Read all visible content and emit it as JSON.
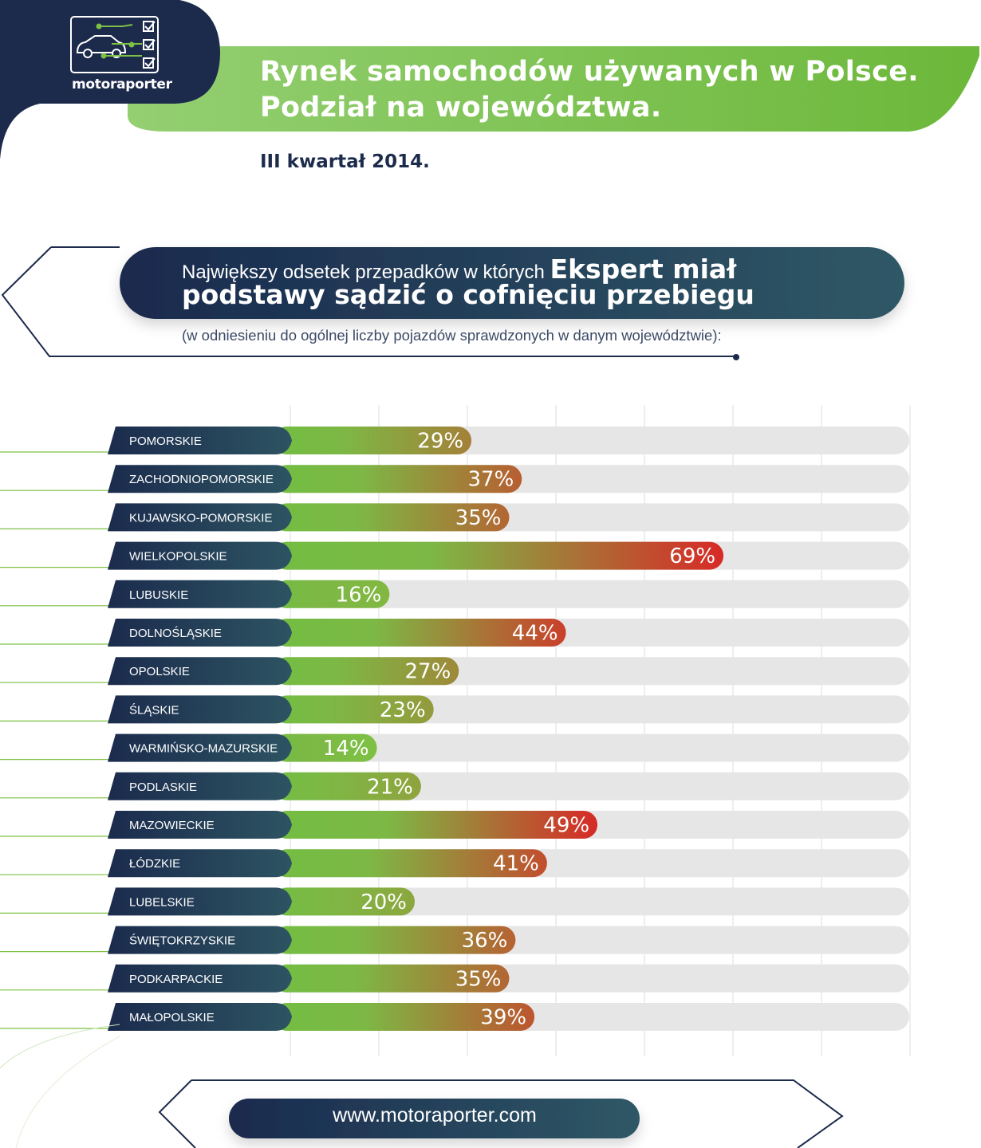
{
  "brand": {
    "name": "motoraporter",
    "logo_icon": "car-checklist-icon"
  },
  "header": {
    "title_line1": "Rynek samochodów używanych  w Polsce.",
    "title_line2": "Podział na województwa.",
    "period": "III kwartał 2014."
  },
  "question": {
    "prefix": "Największy odsetek przepadków w których ",
    "bold_tail": "Ekspert miał",
    "line2": "podstawy sądzić o cofnięciu przebiegu",
    "note": "(w odniesieniu do ogólnej liczby pojazdów sprawdzonych w danym województwie):"
  },
  "chart_data": {
    "type": "bar",
    "orientation": "horizontal",
    "title": "Największy odsetek przepadków w których Ekspert miał podstawy sądzić o cofnięciu przebiegu",
    "categories": [
      "POMORSKIE",
      "ZACHODNIOPOMORSKIE",
      "KUJAWSKO-POMORSKIE",
      "WIELKOPOLSKIE",
      "LUBUSKIE",
      "DOLNOŚLĄSKIE",
      "OPOLSKIE",
      "ŚLĄSKIE",
      "WARMIŃSKO-MAZURSKIE",
      "PODLASKIE",
      "MAZOWIECKIE",
      "ŁÓDZKIE",
      "LUBELSKIE",
      "ŚWIĘTOKRZYSKIE",
      "PODKARPACKIE",
      "MAŁOPOLSKIE"
    ],
    "values": [
      29,
      37,
      35,
      69,
      16,
      44,
      27,
      23,
      14,
      21,
      49,
      41,
      20,
      36,
      35,
      39
    ],
    "labels": [
      "29%",
      "37%",
      "35%",
      "69%",
      "16%",
      "44%",
      "27%",
      "23%",
      "14%",
      "21%",
      "49%",
      "41%",
      "20%",
      "36%",
      "35%",
      "39%"
    ],
    "unit": "%",
    "xlim": [
      0,
      70
    ],
    "grid": true,
    "colors": {
      "low": "#7dc144",
      "high": "#d72a27",
      "label_bg": "#1e2f4e",
      "track": "#e6e6e6"
    }
  },
  "footer": {
    "url": "www.motoraporter.com"
  }
}
